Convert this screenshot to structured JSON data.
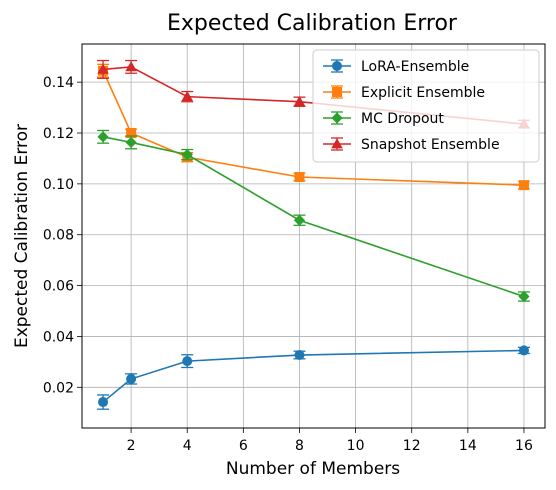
{
  "chart_data": {
    "type": "line",
    "title": "Expected Calibration Error",
    "xlabel": "Number of Members",
    "ylabel": "Expected Calibration Error",
    "xlim": [
      0.25,
      16.75
    ],
    "ylim": [
      0.004,
      0.155
    ],
    "xticks": [
      2,
      4,
      6,
      8,
      10,
      12,
      14,
      16
    ],
    "yticks": [
      0.02,
      0.04,
      0.06,
      0.08,
      0.1,
      0.12,
      0.14
    ],
    "ytick_labels": [
      "0.02",
      "0.04",
      "0.06",
      "0.08",
      "0.10",
      "0.12",
      "0.14"
    ],
    "grid": true,
    "legend_position": "top-right",
    "series": [
      {
        "name": "LoRA-Ensemble",
        "color": "#1f77b4",
        "marker": "circle",
        "x": [
          1,
          2,
          4,
          8,
          16
        ],
        "y": [
          0.0142,
          0.0233,
          0.0303,
          0.0327,
          0.0345
        ],
        "err": [
          0.0028,
          0.002,
          0.0025,
          0.0015,
          0.0012
        ]
      },
      {
        "name": "Explicit Ensemble",
        "color": "#ff7f0e",
        "marker": "square",
        "x": [
          1,
          2,
          4,
          8,
          16
        ],
        "y": [
          0.1445,
          0.12,
          0.1105,
          0.1027,
          0.0995
        ],
        "err": [
          0.0025,
          0.0015,
          0.0018,
          0.0015,
          0.0015
        ]
      },
      {
        "name": "MC Dropout",
        "color": "#2ca02c",
        "marker": "diamond",
        "x": [
          1,
          2,
          4,
          8,
          16
        ],
        "y": [
          0.1185,
          0.1163,
          0.1115,
          0.0857,
          0.0557
        ],
        "err": [
          0.0025,
          0.0025,
          0.002,
          0.002,
          0.0018
        ]
      },
      {
        "name": "Snapshot Ensemble",
        "color": "#d62728",
        "marker": "triangle",
        "x": [
          1,
          2,
          4,
          8,
          16
        ],
        "y": [
          0.145,
          0.146,
          0.1343,
          0.1323,
          0.1235
        ],
        "err": [
          0.0035,
          0.0025,
          0.002,
          0.0018,
          0.0015
        ]
      }
    ]
  }
}
